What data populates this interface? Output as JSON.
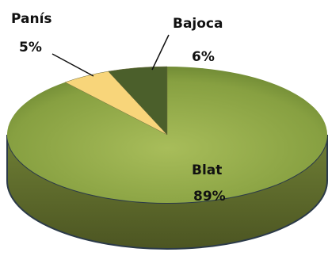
{
  "chart_data": {
    "type": "pie",
    "categories": [
      "Blat",
      "Panís",
      "Bajoca"
    ],
    "values": [
      89,
      5,
      6
    ],
    "value_labels": [
      "89%",
      "5%",
      "6%"
    ],
    "colors": [
      "#8fa64c",
      "#f8d57a",
      "#4b5f2b"
    ],
    "start_angle": 0,
    "direction": "clockwise"
  }
}
